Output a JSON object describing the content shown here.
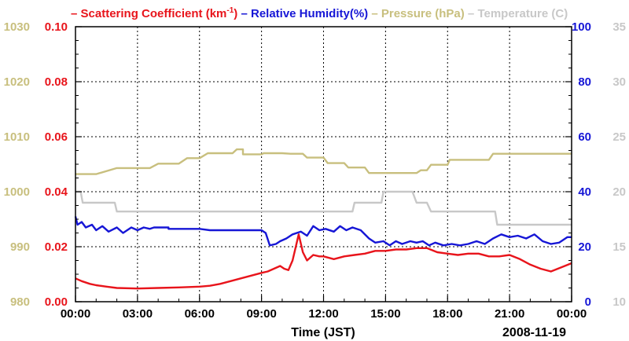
{
  "chart_data": {
    "type": "line",
    "title_legend": [
      {
        "name": "Scattering Coefficient (km",
        "sup": "-1",
        "tail": ")",
        "color": "#e8141b",
        "axis": "scattering"
      },
      {
        "name": "Relative Humidity(%)",
        "color": "#1616d6",
        "axis": "humidity"
      },
      {
        "name": "Pressure (hPa)",
        "color": "#c8bf7e",
        "axis": "pressure"
      },
      {
        "name": "Temperature (C)",
        "color": "#c8c8c8",
        "axis": "temperature"
      }
    ],
    "dash": "–",
    "xlabel": "Time (JST)",
    "date_label": "2008-11-19",
    "x_range_hours": [
      0,
      24
    ],
    "x_ticks": [
      {
        "h": 0,
        "label": "00:00"
      },
      {
        "h": 3,
        "label": "03:00"
      },
      {
        "h": 6,
        "label": "06:00"
      },
      {
        "h": 9,
        "label": "09:00"
      },
      {
        "h": 12,
        "label": "12:00"
      },
      {
        "h": 15,
        "label": "15:00"
      },
      {
        "h": 18,
        "label": "18:00"
      },
      {
        "h": 21,
        "label": "21:00"
      },
      {
        "h": 24,
        "label": "00:00"
      }
    ],
    "axes": {
      "scattering": {
        "range": [
          0,
          0.1
        ],
        "ticks": [
          "0.00",
          "0.02",
          "0.04",
          "0.06",
          "0.08",
          "0.10"
        ],
        "color": "#e8141b"
      },
      "pressure": {
        "range": [
          980,
          1030
        ],
        "ticks": [
          "980",
          "990",
          "1000",
          "1010",
          "1020",
          "1030"
        ],
        "color": "#c8bf7e"
      },
      "humidity": {
        "range": [
          0,
          100
        ],
        "ticks": [
          "0",
          "20",
          "40",
          "60",
          "80",
          "100"
        ],
        "color": "#1616d6"
      },
      "temperature": {
        "range": [
          10,
          35
        ],
        "ticks": [
          "10",
          "15",
          "20",
          "25",
          "30",
          "35"
        ],
        "color": "#c8c8c8"
      }
    },
    "series": {
      "pressure": [
        [
          0,
          1003.2
        ],
        [
          1.0,
          1003.2
        ],
        [
          2.0,
          1004.3
        ],
        [
          3.6,
          1004.3
        ],
        [
          4.0,
          1005.1
        ],
        [
          5.0,
          1005.1
        ],
        [
          5.4,
          1006.1
        ],
        [
          6.0,
          1006.1
        ],
        [
          6.4,
          1007.0
        ],
        [
          7.6,
          1007.0
        ],
        [
          7.8,
          1007.7
        ],
        [
          8.1,
          1007.7
        ],
        [
          8.1,
          1006.8
        ],
        [
          9.0,
          1006.8
        ],
        [
          9.1,
          1007.0
        ],
        [
          10.0,
          1007.0
        ],
        [
          10.4,
          1006.9
        ],
        [
          11.0,
          1006.9
        ],
        [
          11.2,
          1006.2
        ],
        [
          12.0,
          1006.2
        ],
        [
          12.2,
          1005.2
        ],
        [
          13.0,
          1005.2
        ],
        [
          13.2,
          1004.4
        ],
        [
          14.0,
          1004.4
        ],
        [
          14.2,
          1003.4
        ],
        [
          16.5,
          1003.4
        ],
        [
          16.7,
          1003.9
        ],
        [
          17.0,
          1003.9
        ],
        [
          17.2,
          1004.9
        ],
        [
          18.0,
          1004.9
        ],
        [
          18.1,
          1005.8
        ],
        [
          20.0,
          1005.8
        ],
        [
          20.2,
          1006.9
        ],
        [
          24.0,
          1006.9
        ]
      ],
      "temperature": [
        [
          0,
          20.0
        ],
        [
          0.25,
          20.0
        ],
        [
          0.35,
          19.0
        ],
        [
          1.9,
          19.0
        ],
        [
          2.0,
          18.2
        ],
        [
          13.4,
          18.2
        ],
        [
          13.5,
          19.0
        ],
        [
          14.8,
          19.0
        ],
        [
          14.9,
          20.0
        ],
        [
          16.3,
          20.0
        ],
        [
          16.5,
          19.0
        ],
        [
          17.0,
          19.0
        ],
        [
          17.2,
          18.2
        ],
        [
          20.3,
          18.2
        ],
        [
          20.4,
          17.0
        ],
        [
          24.0,
          17.0
        ]
      ],
      "humidity": [
        [
          0,
          31
        ],
        [
          0.1,
          28
        ],
        [
          0.3,
          29
        ],
        [
          0.5,
          27
        ],
        [
          0.8,
          28
        ],
        [
          1.0,
          26
        ],
        [
          1.3,
          27.5
        ],
        [
          1.6,
          25.5
        ],
        [
          2.0,
          27
        ],
        [
          2.3,
          25
        ],
        [
          2.7,
          27
        ],
        [
          3.0,
          26
        ],
        [
          3.3,
          27
        ],
        [
          3.6,
          26.5
        ],
        [
          3.8,
          27
        ],
        [
          4.5,
          27
        ],
        [
          4.5,
          26.5
        ],
        [
          6.0,
          26.5
        ],
        [
          6.5,
          26
        ],
        [
          9.0,
          26
        ],
        [
          9.2,
          25
        ],
        [
          9.4,
          20.5
        ],
        [
          9.7,
          21
        ],
        [
          9.9,
          22
        ],
        [
          10.2,
          23
        ],
        [
          10.5,
          24.5
        ],
        [
          10.9,
          25.5
        ],
        [
          11.2,
          24
        ],
        [
          11.5,
          27.5
        ],
        [
          11.8,
          26
        ],
        [
          12.1,
          26.5
        ],
        [
          12.5,
          25.5
        ],
        [
          12.8,
          27.5
        ],
        [
          13.1,
          26
        ],
        [
          13.4,
          27
        ],
        [
          13.8,
          26
        ],
        [
          14.2,
          23
        ],
        [
          14.5,
          21.5
        ],
        [
          14.9,
          22
        ],
        [
          15.2,
          20.5
        ],
        [
          15.5,
          22
        ],
        [
          15.8,
          21
        ],
        [
          16.2,
          22
        ],
        [
          16.5,
          21.5
        ],
        [
          16.8,
          22
        ],
        [
          17.1,
          20.5
        ],
        [
          17.4,
          21.5
        ],
        [
          17.8,
          20.5
        ],
        [
          18.2,
          21
        ],
        [
          18.6,
          20.5
        ],
        [
          19.0,
          21
        ],
        [
          19.4,
          22
        ],
        [
          19.8,
          21
        ],
        [
          20.2,
          23
        ],
        [
          20.6,
          24.5
        ],
        [
          21.0,
          23.5
        ],
        [
          21.4,
          24
        ],
        [
          21.8,
          23
        ],
        [
          22.2,
          24.5
        ],
        [
          22.6,
          22
        ],
        [
          23.0,
          21
        ],
        [
          23.4,
          21.5
        ],
        [
          23.8,
          23.5
        ],
        [
          24.0,
          23.5
        ]
      ],
      "scattering": [
        [
          0,
          0.0085
        ],
        [
          0.3,
          0.0075
        ],
        [
          0.7,
          0.0065
        ],
        [
          1.0,
          0.006
        ],
        [
          1.5,
          0.0055
        ],
        [
          2.0,
          0.005
        ],
        [
          3.0,
          0.0048
        ],
        [
          4.0,
          0.005
        ],
        [
          5.0,
          0.0052
        ],
        [
          6.0,
          0.0055
        ],
        [
          6.5,
          0.0058
        ],
        [
          7.0,
          0.0065
        ],
        [
          7.5,
          0.0075
        ],
        [
          8.0,
          0.0085
        ],
        [
          8.5,
          0.0095
        ],
        [
          9.0,
          0.0105
        ],
        [
          9.3,
          0.011
        ],
        [
          9.6,
          0.012
        ],
        [
          9.9,
          0.013
        ],
        [
          10.1,
          0.012
        ],
        [
          10.3,
          0.0115
        ],
        [
          10.5,
          0.015
        ],
        [
          10.8,
          0.0245
        ],
        [
          11.0,
          0.018
        ],
        [
          11.2,
          0.015
        ],
        [
          11.5,
          0.017
        ],
        [
          11.8,
          0.0165
        ],
        [
          12.0,
          0.0165
        ],
        [
          12.5,
          0.0155
        ],
        [
          13.0,
          0.0165
        ],
        [
          13.5,
          0.017
        ],
        [
          14.0,
          0.0175
        ],
        [
          14.5,
          0.0185
        ],
        [
          15.0,
          0.0185
        ],
        [
          15.5,
          0.019
        ],
        [
          16.0,
          0.019
        ],
        [
          16.5,
          0.0195
        ],
        [
          17.0,
          0.0195
        ],
        [
          17.5,
          0.018
        ],
        [
          18.0,
          0.0175
        ],
        [
          18.5,
          0.017
        ],
        [
          19.0,
          0.0175
        ],
        [
          19.5,
          0.0175
        ],
        [
          20.0,
          0.0165
        ],
        [
          20.5,
          0.0165
        ],
        [
          21.0,
          0.017
        ],
        [
          21.5,
          0.0155
        ],
        [
          22.0,
          0.0135
        ],
        [
          22.5,
          0.012
        ],
        [
          23.0,
          0.011
        ],
        [
          23.5,
          0.0125
        ],
        [
          24.0,
          0.014
        ]
      ]
    }
  }
}
